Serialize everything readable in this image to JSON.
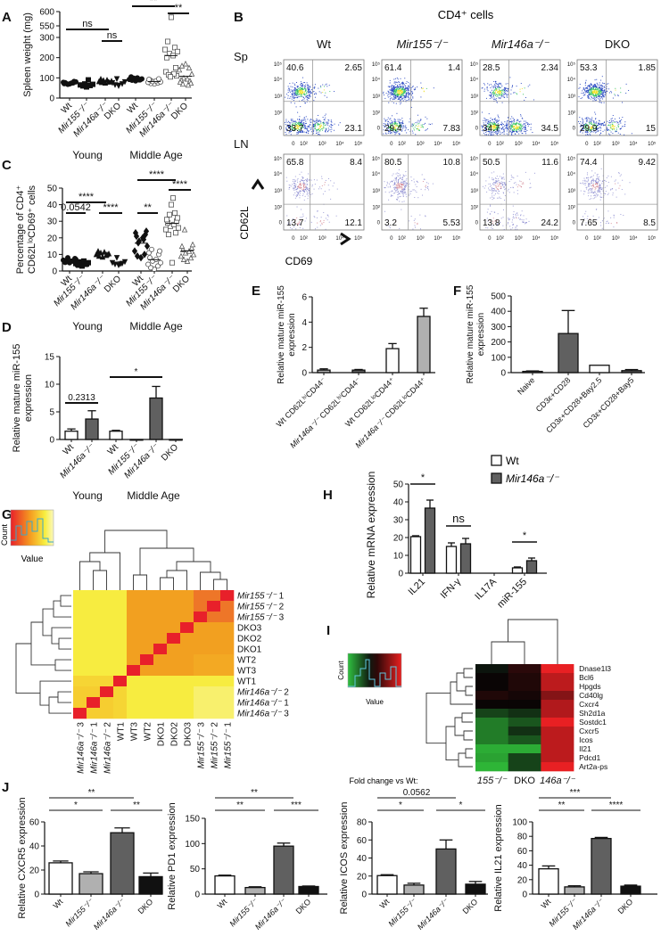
{
  "figure": {
    "panel_labels": {
      "A": "A",
      "B": "B",
      "C": "C",
      "D": "D",
      "E": "E",
      "F": "F",
      "G": "G",
      "H": "H",
      "I": "I",
      "J": "J"
    }
  },
  "flow": {
    "title": "CD4⁺ cells",
    "columns": [
      "Wt",
      "Mir155⁻/⁻",
      "Mir146a⁻/⁻",
      "DKO"
    ],
    "rows": [
      "Sp",
      "LN"
    ],
    "x_axis_label": "CD69",
    "y_axis_label": "CD62L",
    "x_ticks": [
      "0",
      "10²",
      "10³",
      "10⁴",
      "10⁵"
    ],
    "y_ticks": [
      "10⁵",
      "10⁴",
      "10³",
      "10²",
      "0"
    ],
    "quadrants": {
      "Sp": [
        {
          "UL": "40.6",
          "UR": "2.65",
          "LL": "33.7",
          "LR": "23.1"
        },
        {
          "UL": "61.4",
          "UR": "1.4",
          "LL": "29.4",
          "LR": "7.83"
        },
        {
          "UL": "28.5",
          "UR": "2.34",
          "LL": "34.7",
          "LR": "34.5"
        },
        {
          "UL": "53.3",
          "UR": "1.85",
          "LL": "29.9",
          "LR": "15"
        }
      ],
      "LN": [
        {
          "UL": "65.8",
          "UR": "8.4",
          "LL": "13.7",
          "LR": "12.1"
        },
        {
          "UL": "80.5",
          "UR": "10.8",
          "LL": "3.2",
          "LR": "5.53"
        },
        {
          "UL": "50.5",
          "UR": "11.6",
          "LL": "13.8",
          "LR": "24.2"
        },
        {
          "UL": "74.4",
          "UR": "9.42",
          "LL": "7.65",
          "LR": "8.5"
        }
      ]
    }
  },
  "legend_H": {
    "items": [
      {
        "label": "Wt",
        "color": "#ffffff"
      },
      {
        "label": "Mir146a⁻/⁻",
        "color": "#606060"
      }
    ]
  },
  "heatmap_G": {
    "key_count_label": "Count",
    "key_value_label": "Value",
    "rows": [
      "Mir155⁻/⁻ 1",
      "Mir155⁻/⁻ 2",
      "Mir155⁻/⁻ 3",
      "DKO3",
      "DKO2",
      "DKO1",
      "WT2",
      "WT3",
      "WT1",
      "Mir146a⁻/⁻ 2",
      "Mir146a⁻/⁻ 1",
      "Mir146a⁻/⁻ 3"
    ],
    "columns": [
      "Mir146a⁻/⁻ 3",
      "Mir146a⁻/⁻ 1",
      "Mir146a⁻/⁻ 2",
      "WT1",
      "WT3",
      "WT2",
      "DKO1",
      "DKO2",
      "DKO3",
      "Mir155⁻/⁻ 3",
      "Mir155⁻/⁻ 2",
      "Mir155⁻/⁻ 1"
    ],
    "matrix": [
      [
        0.15,
        0.15,
        0.15,
        0.15,
        0.6,
        0.6,
        0.6,
        0.6,
        0.6,
        0.75,
        0.75,
        1
      ],
      [
        0.15,
        0.15,
        0.15,
        0.15,
        0.6,
        0.6,
        0.6,
        0.6,
        0.6,
        0.75,
        1,
        0.75
      ],
      [
        0.15,
        0.15,
        0.15,
        0.15,
        0.6,
        0.6,
        0.6,
        0.6,
        0.6,
        1,
        0.75,
        0.75
      ],
      [
        0.15,
        0.15,
        0.15,
        0.15,
        0.6,
        0.6,
        0.6,
        0.6,
        1,
        0.6,
        0.6,
        0.6
      ],
      [
        0.15,
        0.15,
        0.15,
        0.15,
        0.6,
        0.6,
        0.6,
        1,
        0.6,
        0.6,
        0.6,
        0.6
      ],
      [
        0.15,
        0.15,
        0.15,
        0.15,
        0.6,
        0.6,
        1,
        0.6,
        0.6,
        0.6,
        0.6,
        0.6
      ],
      [
        0.15,
        0.15,
        0.15,
        0.15,
        0.6,
        1,
        0.6,
        0.6,
        0.6,
        0.55,
        0.55,
        0.55
      ],
      [
        0.15,
        0.15,
        0.15,
        0.15,
        1,
        0.6,
        0.6,
        0.6,
        0.6,
        0.55,
        0.55,
        0.55
      ],
      [
        0.3,
        0.3,
        0.3,
        1,
        0.15,
        0.15,
        0.15,
        0.15,
        0.15,
        0.15,
        0.15,
        0.15
      ],
      [
        0.35,
        0.35,
        1,
        0.3,
        0.15,
        0.15,
        0.15,
        0.15,
        0.15,
        0.1,
        0.1,
        0.1
      ],
      [
        0.35,
        1,
        0.35,
        0.3,
        0.15,
        0.15,
        0.15,
        0.15,
        0.15,
        0.1,
        0.1,
        0.1
      ],
      [
        1,
        0.35,
        0.35,
        0.3,
        0.15,
        0.15,
        0.15,
        0.15,
        0.15,
        0.1,
        0.1,
        0.1
      ]
    ]
  },
  "heatmap_I": {
    "key_count_label": "Count",
    "key_value_label": "Value",
    "fold_change_label": "Fold change vs Wt:",
    "columns": [
      "155⁻/⁻",
      "DKO",
      "146a⁻/⁻"
    ],
    "genes": [
      "Dnase1l3",
      "Bcl6",
      "Hpgds",
      "Cd40lg",
      "Cxcr4",
      "Sh2d1a",
      "Sostdc1",
      "Cxcr5",
      "Icos",
      "Il21",
      "Pdcd1",
      "Art2a-ps"
    ],
    "values": [
      [
        -0.05,
        0.15,
        1.0
      ],
      [
        0.0,
        0.1,
        0.8
      ],
      [
        0.0,
        0.1,
        0.8
      ],
      [
        0.1,
        0.05,
        0.55
      ],
      [
        0.0,
        0.0,
        0.75
      ],
      [
        -0.3,
        -0.2,
        0.75
      ],
      [
        -0.6,
        -0.4,
        1.0
      ],
      [
        -0.6,
        -0.2,
        0.8
      ],
      [
        -0.6,
        -0.4,
        0.8
      ],
      [
        -0.85,
        -0.85,
        0.8
      ],
      [
        -0.8,
        -0.3,
        0.8
      ],
      [
        -0.9,
        -0.3,
        1.0
      ]
    ]
  },
  "chart_data": [
    {
      "id": "A",
      "type": "scatter",
      "ylabel": [
        "Spleen weight (mg)"
      ],
      "yticks": [
        0,
        100,
        200,
        300,
        550,
        600
      ],
      "ylim_lower": [
        0,
        300
      ],
      "ylim_upper": [
        550,
        600
      ],
      "broken_axis": true,
      "categories": [
        "Wt",
        "Mir155⁻/⁻",
        "Mir146a⁻/⁻",
        "DKO",
        "Wt",
        "Mir155⁻/⁻",
        "Mir146a⁻/⁻",
        "DKO"
      ],
      "groups": [
        "Young",
        "Middle Age"
      ],
      "markers": [
        "circle-filled",
        "square-filled",
        "triangle-filled",
        "triangle-down-filled",
        "circle-filled",
        "circle-open",
        "square-open",
        "triangle-open"
      ],
      "series": [
        [
          70,
          72,
          75,
          78,
          80,
          68,
          74,
          76,
          82,
          71
        ],
        [
          55,
          60,
          62,
          65,
          68,
          70,
          90
        ],
        [
          75,
          78,
          80,
          82,
          85,
          88,
          90,
          95
        ],
        [
          60,
          65,
          70,
          75,
          80,
          95
        ],
        [
          85,
          88,
          90,
          92,
          95,
          98,
          100,
          105,
          90
        ],
        [
          70,
          72,
          75,
          78,
          80,
          82,
          85,
          90,
          95,
          92
        ],
        [
          580,
          280,
          250,
          240,
          230,
          220,
          210,
          200,
          150,
          130,
          110,
          115,
          120,
          105
        ],
        [
          170,
          160,
          150,
          140,
          120,
          100,
          95,
          90,
          85,
          80,
          75,
          70,
          65
        ]
      ],
      "sig": [
        {
          "from": 0,
          "to": 2,
          "label": "ns"
        },
        {
          "from": 2,
          "to": 3,
          "label": "ns"
        },
        {
          "from": 4,
          "to": 6,
          "label": "**"
        },
        {
          "from": 6,
          "to": 7,
          "label": "**"
        }
      ]
    },
    {
      "id": "C",
      "type": "scatter",
      "ylabel": [
        "Percentage of CD4⁺",
        "CD62LˡᵒCD69⁺ cells"
      ],
      "yticks": [
        0,
        10,
        20,
        30,
        40,
        50
      ],
      "ylim": [
        0,
        50
      ],
      "categories": [
        "Wt",
        "Mir155⁻/⁻",
        "Mir146a⁻/⁻",
        "DKO",
        "Wt",
        "Mir155⁻/⁻",
        "Mir146a⁻/⁻",
        "DKO"
      ],
      "groups": [
        "Young",
        "Middle Age"
      ],
      "markers": [
        "circle-filled",
        "square-filled",
        "triangle-filled",
        "triangle-down-filled",
        "diamond-filled",
        "circle-open",
        "square-open",
        "triangle-open"
      ],
      "series": [
        [
          5,
          5.5,
          6,
          6.5,
          7,
          8,
          6,
          5.2,
          5.8,
          6.2,
          7.5
        ],
        [
          3,
          3.5,
          4,
          4.5,
          5,
          5.5,
          6,
          4,
          4.2
        ],
        [
          8.5,
          9,
          9.5,
          10,
          10.5,
          11,
          11.5,
          12,
          10
        ],
        [
          3.5,
          4,
          4.5,
          5,
          5.5,
          8,
          4.2
        ],
        [
          8,
          9,
          10,
          12,
          15,
          18,
          20,
          21,
          22,
          23,
          24,
          17,
          19
        ],
        [
          1,
          2,
          3,
          4,
          5,
          6,
          7,
          8,
          10,
          11,
          12,
          13
        ],
        [
          5,
          22,
          23,
          25,
          26,
          27,
          28,
          29,
          30,
          31,
          32,
          34,
          35,
          40,
          44
        ],
        [
          6,
          7,
          8,
          9,
          10,
          11,
          12,
          13,
          14,
          15,
          16,
          25
        ]
      ],
      "sig": [
        {
          "from": 0,
          "to": 2,
          "label": "****"
        },
        {
          "from": 0,
          "to": 1,
          "label": "0.0542"
        },
        {
          "from": 2,
          "to": 3,
          "label": "****"
        },
        {
          "from": 4,
          "to": 5,
          "label": "**"
        },
        {
          "from": 4,
          "to": 6,
          "label": "****"
        },
        {
          "from": 6,
          "to": 7,
          "label": "****"
        }
      ]
    },
    {
      "id": "D",
      "type": "bar",
      "ylabel": [
        "Relative mature miR-155",
        "expression"
      ],
      "yticks": [
        0,
        5,
        10,
        15
      ],
      "ylim": [
        0,
        15
      ],
      "categories": [
        "Wt",
        "Mir146a⁻/⁻",
        "Wt",
        "Mir155⁻/⁻",
        "Mir146a⁻/⁻",
        "DKO"
      ],
      "groups": [
        "Young",
        "Middle Age"
      ],
      "values": [
        1.5,
        3.7,
        1.5,
        0,
        7.5,
        0
      ],
      "errors": [
        0.4,
        1.5,
        0.15,
        0,
        2.1,
        0
      ],
      "colors": [
        "#ffffff",
        "#606060",
        "#ffffff",
        "#606060",
        "#606060",
        "#606060"
      ],
      "sig": [
        {
          "from": 0,
          "to": 1,
          "label": "0.2313"
        },
        {
          "from": 2,
          "to": 4,
          "label": "*"
        }
      ]
    },
    {
      "id": "E",
      "type": "bar",
      "ylabel": [
        "Relative mature miR-155",
        "expression"
      ],
      "yticks": [
        0,
        2,
        4,
        6
      ],
      "ylim": [
        0,
        6
      ],
      "categories": [
        "Wt CD62LʰⁱCD44⁻",
        "Mir146a⁻/⁻ CD62LʰⁱCD44⁻",
        "Wt CD62LˡᵒCD44⁺",
        "Mir146a⁻/⁻ CD62LˡᵒCD44⁺"
      ],
      "values": [
        0.2,
        0.2,
        1.9,
        4.45
      ],
      "errors": [
        0.1,
        0.05,
        0.4,
        0.65
      ],
      "colors": [
        "#b0b0b0",
        "#606060",
        "#ffffff",
        "#b0b0b0"
      ],
      "sig": []
    },
    {
      "id": "F",
      "type": "bar",
      "ylabel": [
        "Relative mature miR-155",
        "expression"
      ],
      "yticks": [
        0,
        100,
        200,
        300,
        400,
        500
      ],
      "ylim": [
        0,
        500
      ],
      "categories": [
        "Naive",
        "CD3ε+CD28",
        "CD3ε+CD28+Bay2.5",
        "CD3ε+CD28+Bay5"
      ],
      "values": [
        8,
        255,
        48,
        13
      ],
      "errors": [
        3,
        150,
        0,
        7
      ],
      "colors": [
        "#ffffff",
        "#606060",
        "#ffffff",
        "#606060"
      ],
      "sig": []
    },
    {
      "id": "H",
      "type": "bar",
      "ylabel": [
        "Relative mRNA expression"
      ],
      "yticks": [
        0,
        10,
        20,
        30,
        40,
        50
      ],
      "ylim": [
        0,
        50
      ],
      "categories": [
        "IL21",
        "IFN-γ",
        "IL17A",
        "miR-155"
      ],
      "series": [
        {
          "name": "Wt",
          "values": [
            20.5,
            15,
            0,
            3
          ],
          "errors": [
            0.5,
            2,
            0,
            0.5
          ],
          "color": "#ffffff"
        },
        {
          "name": "Mir146a⁻/⁻",
          "values": [
            36.5,
            16.5,
            0,
            7
          ],
          "errors": [
            4.5,
            3,
            0,
            1.5
          ],
          "color": "#606060"
        }
      ],
      "sig": [
        {
          "category": 0,
          "label": "*"
        },
        {
          "category": 1,
          "label": "ns"
        },
        {
          "category": 3,
          "label": "*"
        }
      ]
    },
    {
      "id": "J1",
      "type": "bar",
      "ylabel": [
        "Relative CXCR5 expression"
      ],
      "yticks": [
        0,
        20,
        40,
        60
      ],
      "ylim": [
        0,
        60
      ],
      "categories": [
        "Wt",
        "Mir155⁻/⁻",
        "Mir146a⁻/⁻",
        "DKO"
      ],
      "values": [
        26,
        17,
        51,
        14.5
      ],
      "errors": [
        1.5,
        1.5,
        4,
        3
      ],
      "colors": [
        "#ffffff",
        "#b0b0b0",
        "#606060",
        "#111111"
      ],
      "sig": [
        {
          "from": 0,
          "to": 2,
          "label": "**"
        },
        {
          "from": 0,
          "to": 1,
          "label": "*"
        },
        {
          "from": 2,
          "to": 3,
          "label": "**"
        }
      ]
    },
    {
      "id": "J2",
      "type": "bar",
      "ylabel": [
        "Relative PD1 expression"
      ],
      "yticks": [
        0,
        50,
        100,
        150
      ],
      "ylim": [
        0,
        150
      ],
      "categories": [
        "Wt",
        "Mir155⁻/⁻",
        "Mir146a⁻/⁻",
        "DKO"
      ],
      "values": [
        36,
        13,
        95,
        15
      ],
      "errors": [
        1.5,
        1.5,
        6,
        1
      ],
      "colors": [
        "#ffffff",
        "#b0b0b0",
        "#606060",
        "#111111"
      ],
      "sig": [
        {
          "from": 0,
          "to": 2,
          "label": "**"
        },
        {
          "from": 0,
          "to": 1,
          "label": "**"
        },
        {
          "from": 2,
          "to": 3,
          "label": "***"
        }
      ]
    },
    {
      "id": "J3",
      "type": "bar",
      "ylabel": [
        "Relative ICOS expression"
      ],
      "yticks": [
        0,
        20,
        40,
        60,
        80
      ],
      "ylim": [
        0,
        80
      ],
      "categories": [
        "Wt",
        "Mir155⁻/⁻",
        "Mir146a⁻/⁻",
        "DKO"
      ],
      "values": [
        20.5,
        10,
        50,
        11
      ],
      "errors": [
        1,
        2,
        10,
        3
      ],
      "colors": [
        "#ffffff",
        "#b0b0b0",
        "#606060",
        "#111111"
      ],
      "sig": [
        {
          "from": 0,
          "to": 2,
          "label": "0.0562"
        },
        {
          "from": 0,
          "to": 1,
          "label": "*"
        },
        {
          "from": 2,
          "to": 3,
          "label": "*"
        }
      ]
    },
    {
      "id": "J4",
      "type": "bar",
      "ylabel": [
        "Relative IL21 expression"
      ],
      "yticks": [
        0,
        20,
        40,
        60,
        80,
        100
      ],
      "ylim": [
        0,
        100
      ],
      "categories": [
        "Wt",
        "Mir155⁻/⁻",
        "Mir146a⁻/⁻",
        "DKO"
      ],
      "values": [
        35,
        10,
        77,
        11
      ],
      "errors": [
        4,
        1.5,
        1.5,
        1.5
      ],
      "colors": [
        "#ffffff",
        "#b0b0b0",
        "#606060",
        "#111111"
      ],
      "sig": [
        {
          "from": 0,
          "to": 2,
          "label": "***"
        },
        {
          "from": 0,
          "to": 1,
          "label": "**"
        },
        {
          "from": 2,
          "to": 3,
          "label": "****"
        }
      ]
    }
  ]
}
